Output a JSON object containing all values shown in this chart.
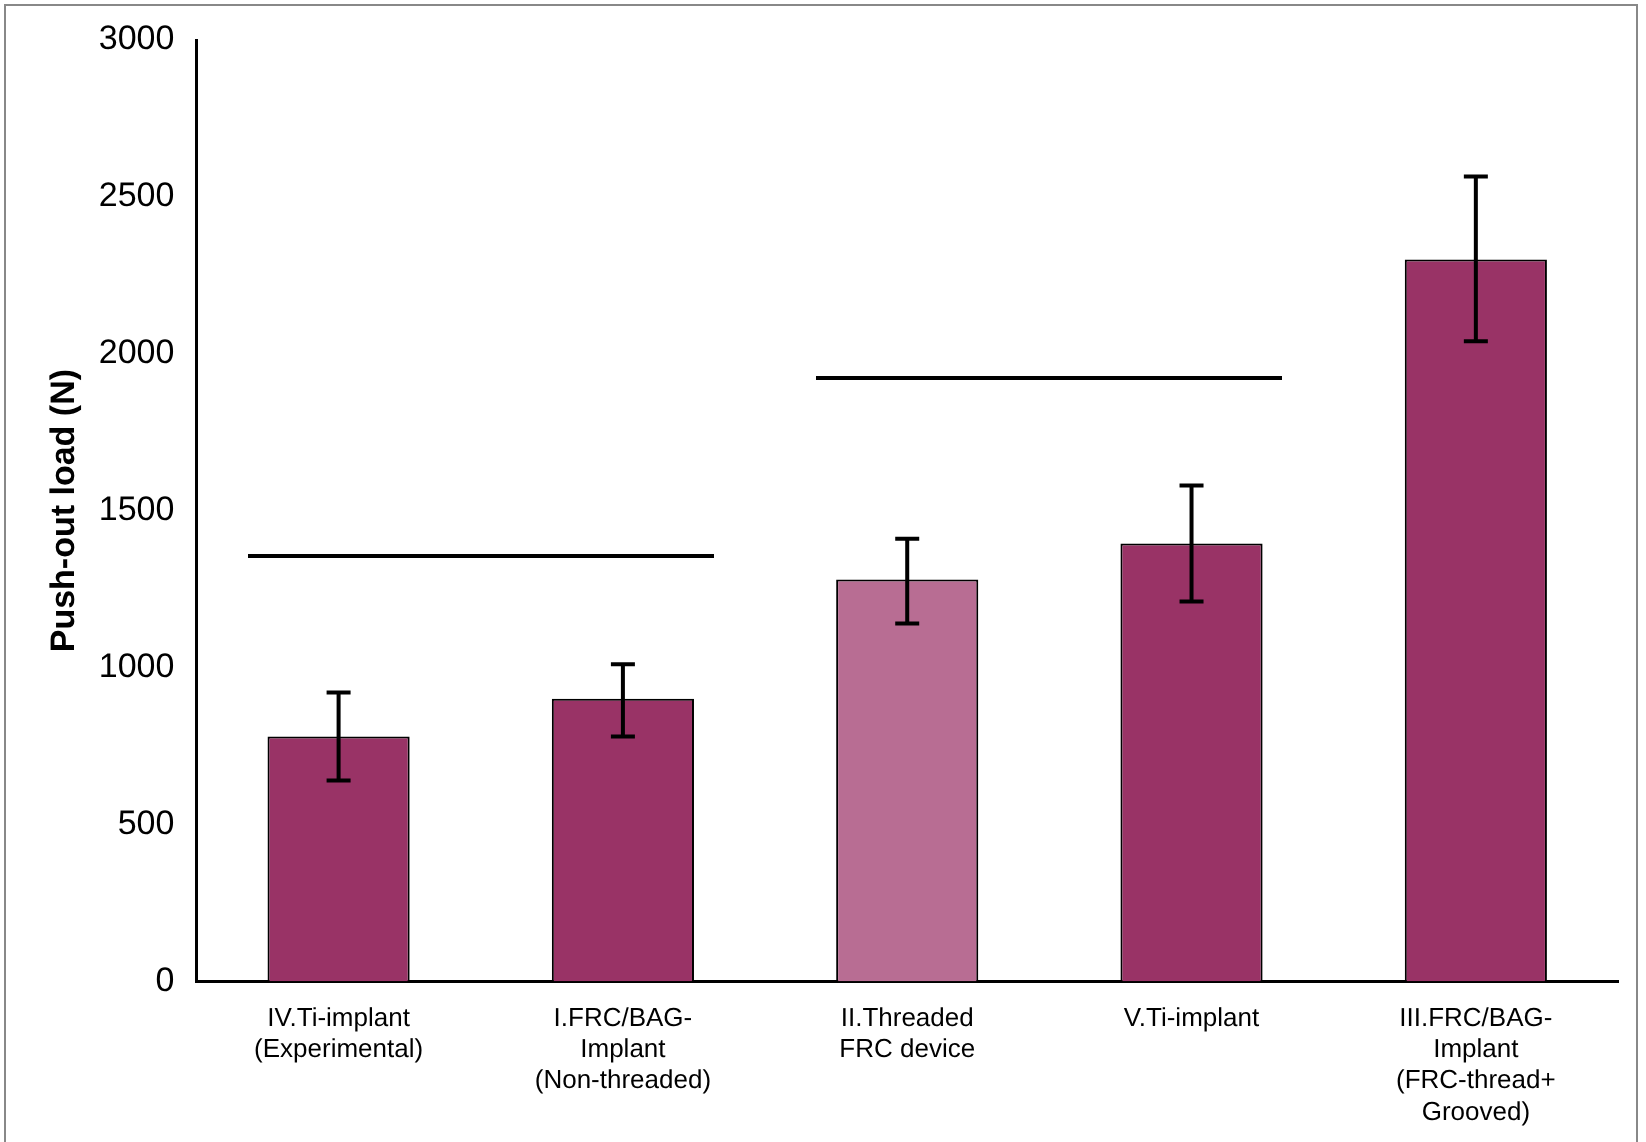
{
  "chart_data": {
    "type": "bar",
    "ylabel": "Push-out load (N)",
    "categories": [
      "IV.Ti-implant (Experimental)",
      "I.FRC/BAG-Implant (Non-threaded)",
      "II.Threaded FRC device",
      "V.Ti-implant",
      "III.FRC/BAG-Implant (FRC-thread+ Grooved)"
    ],
    "values": [
      780,
      900,
      1280,
      1395,
      2300
    ],
    "errors": [
      [
        640,
        920
      ],
      [
        780,
        1010
      ],
      [
        1140,
        1410
      ],
      [
        1210,
        1580
      ],
      [
        2040,
        2565
      ]
    ],
    "colors": [
      "#993366",
      "#993366",
      "#b86d93",
      "#993366",
      "#993366"
    ],
    "ylim": [
      0,
      3000
    ],
    "yticks": [
      0,
      500,
      1000,
      1500,
      2000,
      2500,
      3000
    ],
    "grid": false,
    "legend": false
  }
}
